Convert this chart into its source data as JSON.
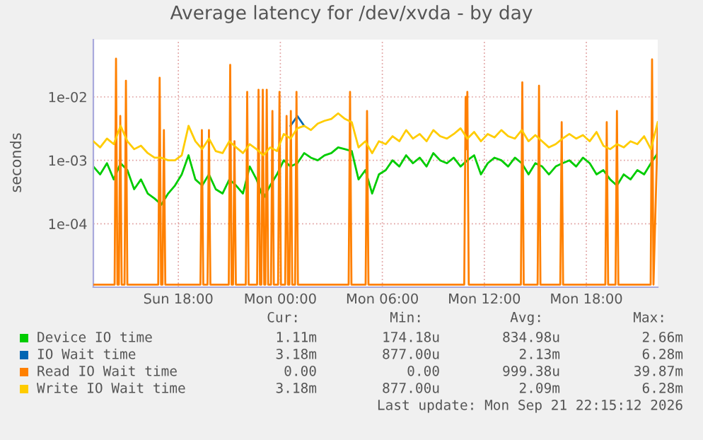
{
  "chart_data": {
    "type": "line",
    "title": "Average latency for /dev/xvda - by day",
    "ylabel": "seconds",
    "log": "y",
    "grid": true,
    "legend": "bottom",
    "xlim": [
      "2026-09-20T13:00",
      "2026-09-21T22:12"
    ],
    "xticks": [
      {
        "value": "2026-09-20T18:00",
        "label": "Sun 18:00"
      },
      {
        "value": "2026-09-21T00:00",
        "label": "Mon 00:00"
      },
      {
        "value": "2026-09-21T06:00",
        "label": "Mon 06:00"
      },
      {
        "value": "2026-09-21T12:00",
        "label": "Mon 12:00"
      },
      {
        "value": "2026-09-21T18:00",
        "label": "Mon 18:00"
      }
    ],
    "ylim": [
      1e-05,
      0.08
    ],
    "yticks": [
      {
        "value": 0.0001,
        "label": "1e-04"
      },
      {
        "value": 0.001,
        "label": "1e-03"
      },
      {
        "value": 0.01,
        "label": "1e-02"
      }
    ],
    "x": [
      "2026-09-20T13:00",
      "2026-09-20T13:24",
      "2026-09-20T13:48",
      "2026-09-20T14:12",
      "2026-09-20T14:36",
      "2026-09-20T15:00",
      "2026-09-20T15:24",
      "2026-09-20T15:48",
      "2026-09-20T16:12",
      "2026-09-20T16:36",
      "2026-09-20T17:00",
      "2026-09-20T17:24",
      "2026-09-20T17:48",
      "2026-09-20T18:12",
      "2026-09-20T18:36",
      "2026-09-20T19:00",
      "2026-09-20T19:24",
      "2026-09-20T19:48",
      "2026-09-20T20:12",
      "2026-09-20T20:36",
      "2026-09-20T21:00",
      "2026-09-20T21:24",
      "2026-09-20T21:48",
      "2026-09-20T22:12",
      "2026-09-20T22:36",
      "2026-09-20T23:00",
      "2026-09-20T23:24",
      "2026-09-20T23:48",
      "2026-09-21T00:12",
      "2026-09-21T00:36",
      "2026-09-21T01:00",
      "2026-09-21T01:24",
      "2026-09-21T01:48",
      "2026-09-21T02:12",
      "2026-09-21T02:36",
      "2026-09-21T03:00",
      "2026-09-21T03:24",
      "2026-09-21T03:48",
      "2026-09-21T04:12",
      "2026-09-21T04:36",
      "2026-09-21T05:00",
      "2026-09-21T05:24",
      "2026-09-21T05:48",
      "2026-09-21T06:12",
      "2026-09-21T06:36",
      "2026-09-21T07:00",
      "2026-09-21T07:24",
      "2026-09-21T07:48",
      "2026-09-21T08:12",
      "2026-09-21T08:36",
      "2026-09-21T09:00",
      "2026-09-21T09:24",
      "2026-09-21T09:48",
      "2026-09-21T10:12",
      "2026-09-21T10:36",
      "2026-09-21T11:00",
      "2026-09-21T11:24",
      "2026-09-21T11:48",
      "2026-09-21T12:12",
      "2026-09-21T12:36",
      "2026-09-21T13:00",
      "2026-09-21T13:24",
      "2026-09-21T13:48",
      "2026-09-21T14:12",
      "2026-09-21T14:36",
      "2026-09-21T15:00",
      "2026-09-21T15:24",
      "2026-09-21T15:48",
      "2026-09-21T16:12",
      "2026-09-21T16:36",
      "2026-09-21T17:00",
      "2026-09-21T17:24",
      "2026-09-21T17:48",
      "2026-09-21T18:12",
      "2026-09-21T18:36",
      "2026-09-21T19:00",
      "2026-09-21T19:24",
      "2026-09-21T19:48",
      "2026-09-21T20:12",
      "2026-09-21T20:36",
      "2026-09-21T21:00",
      "2026-09-21T21:24",
      "2026-09-21T21:48",
      "2026-09-21T22:12"
    ],
    "series": [
      {
        "name": "Device IO time",
        "color": "#00cc00",
        "values": [
          0.0008,
          0.0006,
          0.0009,
          0.0005,
          0.0009,
          0.0007,
          0.00035,
          0.0005,
          0.0003,
          0.00025,
          0.0002,
          0.0003,
          0.0004,
          0.0006,
          0.0012,
          0.0005,
          0.0004,
          0.0006,
          0.00035,
          0.0003,
          0.0005,
          0.0004,
          0.0003,
          0.0008,
          0.0005,
          0.00025,
          0.0004,
          0.0006,
          0.001,
          0.0008,
          0.0009,
          0.0013,
          0.0011,
          0.001,
          0.0012,
          0.0013,
          0.0016,
          0.0015,
          0.0014,
          0.0005,
          0.0007,
          0.0003,
          0.0006,
          0.0007,
          0.001,
          0.0008,
          0.0012,
          0.0009,
          0.0011,
          0.0008,
          0.0013,
          0.001,
          0.0009,
          0.0011,
          0.0008,
          0.001,
          0.0012,
          0.0006,
          0.0009,
          0.0011,
          0.001,
          0.0008,
          0.0011,
          0.0009,
          0.0006,
          0.0009,
          0.0008,
          0.0006,
          0.0008,
          0.0009,
          0.001,
          0.0008,
          0.0011,
          0.0009,
          0.0006,
          0.0007,
          0.0005,
          0.0004,
          0.0006,
          0.0005,
          0.0007,
          0.0006,
          0.0009,
          0.0013
        ]
      },
      {
        "name": "IO Wait time",
        "color": "#0066b3",
        "x": [
          "2026-09-21T00:36",
          "2026-09-21T01:00",
          "2026-09-21T01:24"
        ],
        "values": [
          0.0035,
          0.005,
          0.0035
        ]
      },
      {
        "name": "Read IO Wait time",
        "color": "#ff8000",
        "x": [
          "2026-09-20T13:00",
          "2026-09-20T14:15",
          "2026-09-20T14:20",
          "2026-09-20T14:25",
          "2026-09-20T14:30",
          "2026-09-20T14:35",
          "2026-09-20T14:40",
          "2026-09-20T14:50",
          "2026-09-20T14:55",
          "2026-09-20T15:00",
          "2026-09-20T16:49",
          "2026-09-20T16:54",
          "2026-09-20T16:59",
          "2026-09-20T17:04",
          "2026-09-20T17:09",
          "2026-09-20T17:14",
          "2026-09-20T19:18",
          "2026-09-20T19:23",
          "2026-09-20T19:28",
          "2026-09-20T19:43",
          "2026-09-20T19:48",
          "2026-09-20T19:53",
          "2026-09-20T20:58",
          "2026-09-20T21:03",
          "2026-09-20T21:08",
          "2026-09-20T21:13",
          "2026-09-20T21:18",
          "2026-09-20T21:23",
          "2026-09-20T21:58",
          "2026-09-20T22:03",
          "2026-09-20T22:08",
          "2026-09-20T22:38",
          "2026-09-20T22:43",
          "2026-09-20T22:48",
          "2026-09-20T22:53",
          "2026-09-20T22:58",
          "2026-09-20T23:03",
          "2026-09-20T23:07",
          "2026-09-20T23:12",
          "2026-09-20T23:17",
          "2026-09-20T23:27",
          "2026-09-20T23:32",
          "2026-09-20T23:37",
          "2026-09-20T23:52",
          "2026-09-20T23:57",
          "2026-09-21T00:02",
          "2026-09-21T00:17",
          "2026-09-21T00:22",
          "2026-09-21T00:27",
          "2026-09-21T00:32",
          "2026-09-21T00:37",
          "2026-09-21T00:42",
          "2026-09-21T00:52",
          "2026-09-21T00:57",
          "2026-09-21T01:02",
          "2026-09-21T04:01",
          "2026-09-21T04:06",
          "2026-09-21T04:11",
          "2026-09-21T05:01",
          "2026-09-21T05:06",
          "2026-09-21T05:11",
          "2026-09-21T10:49",
          "2026-09-21T10:54",
          "2026-09-21T10:57",
          "2026-09-21T11:00",
          "2026-09-21T11:05",
          "2026-09-21T14:09",
          "2026-09-21T14:14",
          "2026-09-21T14:19",
          "2026-09-21T15:08",
          "2026-09-21T15:13",
          "2026-09-21T15:18",
          "2026-09-21T16:28",
          "2026-09-21T16:33",
          "2026-09-21T16:38",
          "2026-09-21T19:07",
          "2026-09-21T19:12",
          "2026-09-21T19:17",
          "2026-09-21T19:43",
          "2026-09-21T19:48",
          "2026-09-21T19:53",
          "2026-09-21T21:47",
          "2026-09-21T21:52",
          "2026-09-21T21:57",
          "2026-09-21T22:12"
        ],
        "values": [
          1.1e-05,
          1.1e-05,
          0.04,
          1.1e-05,
          1.1e-05,
          0.005,
          1.1e-05,
          1.1e-05,
          0.018,
          1.1e-05,
          1.1e-05,
          0.02,
          1.1e-05,
          1.1e-05,
          0.003,
          1.1e-05,
          1.1e-05,
          0.003,
          1.1e-05,
          1.1e-05,
          0.003,
          1.1e-05,
          1.1e-05,
          0.032,
          1.1e-05,
          1.1e-05,
          0.002,
          1.1e-05,
          1.1e-05,
          0.012,
          1.1e-05,
          1.1e-05,
          0.013,
          1.1e-05,
          1.1e-05,
          0.013,
          1.1e-05,
          1.1e-05,
          0.013,
          1.1e-05,
          1.1e-05,
          0.006,
          1.1e-05,
          1.1e-05,
          0.012,
          1.1e-05,
          1.1e-05,
          0.005,
          1.1e-05,
          1.1e-05,
          0.006,
          1.1e-05,
          1.1e-05,
          0.012,
          1.1e-05,
          1.1e-05,
          0.012,
          1.1e-05,
          1.1e-05,
          0.006,
          1.1e-05,
          1.1e-05,
          0.01,
          0.0015,
          0.012,
          1.1e-05,
          1.1e-05,
          0.017,
          1.1e-05,
          1.1e-05,
          0.015,
          1.1e-05,
          1.1e-05,
          0.004,
          1.1e-05,
          1.1e-05,
          0.004,
          1.1e-05,
          1.1e-05,
          0.006,
          1.1e-05,
          1.1e-05,
          0.039,
          1.1e-05,
          0.0035
        ]
      },
      {
        "name": "Write IO Wait time",
        "color": "#ffcc00",
        "values": [
          0.002,
          0.0016,
          0.0022,
          0.0018,
          0.0035,
          0.002,
          0.0015,
          0.0017,
          0.0013,
          0.0011,
          0.0011,
          0.001,
          0.001,
          0.0012,
          0.0035,
          0.002,
          0.0015,
          0.0022,
          0.0014,
          0.0013,
          0.002,
          0.0016,
          0.0013,
          0.0018,
          0.0015,
          0.0012,
          0.0016,
          0.0014,
          0.0026,
          0.0022,
          0.0032,
          0.0035,
          0.003,
          0.0038,
          0.0042,
          0.0045,
          0.0055,
          0.0045,
          0.004,
          0.0016,
          0.002,
          0.0013,
          0.002,
          0.0018,
          0.0024,
          0.002,
          0.003,
          0.0022,
          0.0026,
          0.002,
          0.003,
          0.0024,
          0.0022,
          0.0026,
          0.0032,
          0.0022,
          0.0028,
          0.002,
          0.0026,
          0.0023,
          0.003,
          0.0024,
          0.0022,
          0.003,
          0.002,
          0.0025,
          0.002,
          0.0016,
          0.0018,
          0.0022,
          0.0026,
          0.0022,
          0.0025,
          0.002,
          0.0028,
          0.0017,
          0.0015,
          0.0018,
          0.0016,
          0.002,
          0.0018,
          0.0024,
          0.0015,
          0.004
        ]
      }
    ],
    "annotations": [
      "Cur:",
      "Min:",
      "Avg:",
      "Max:",
      "1.11m",
      "174.18u",
      "834.98u",
      "2.66m",
      "3.18m",
      "877.00u",
      "2.13m",
      "6.28m",
      "0.00",
      "0.00",
      "999.38u",
      "39.87m",
      "3.18m",
      "877.00u",
      "2.09m",
      "6.28m",
      "Last update: Mon Sep 21 22:15:12 2026"
    ]
  }
}
